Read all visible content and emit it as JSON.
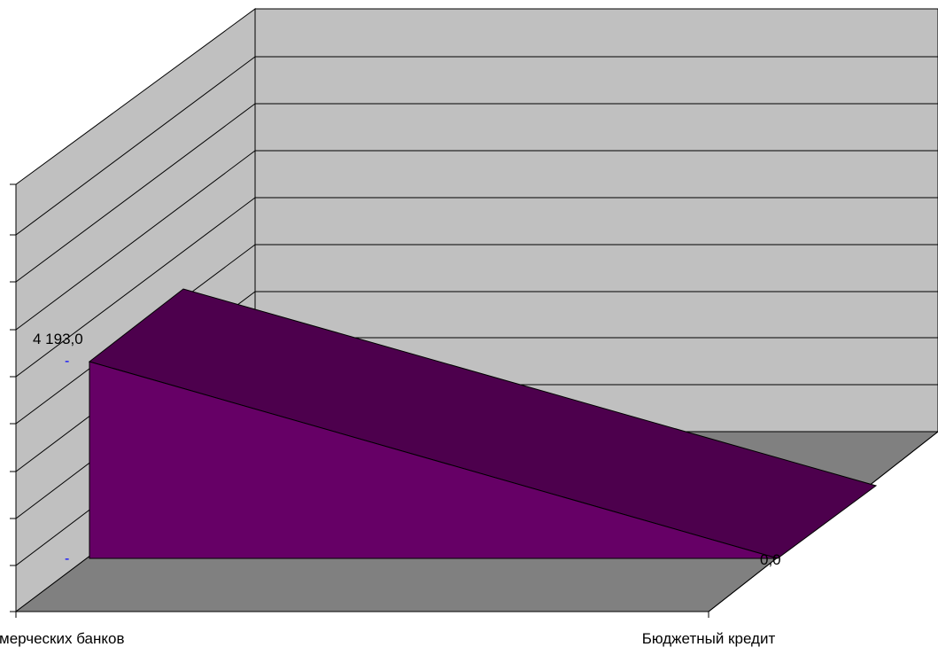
{
  "chart_data": {
    "type": "area",
    "style": "3d",
    "categories": [
      "мерческих банков",
      "Бюджетный кредит"
    ],
    "series": [
      {
        "values": [
          4193.0,
          0.0
        ],
        "data_labels": [
          "4 193,0",
          "0,0"
        ]
      }
    ],
    "y_markers": [
      "-",
      "-"
    ],
    "grid": true,
    "legend": "none"
  },
  "colors": {
    "series_front": "#660066",
    "series_top": "#4d004d",
    "back_wall": "#c0c0c0",
    "side_wall": "#c0c0c0",
    "floor": "#808080",
    "gridline": "#000000",
    "marker": "#0000ff"
  }
}
